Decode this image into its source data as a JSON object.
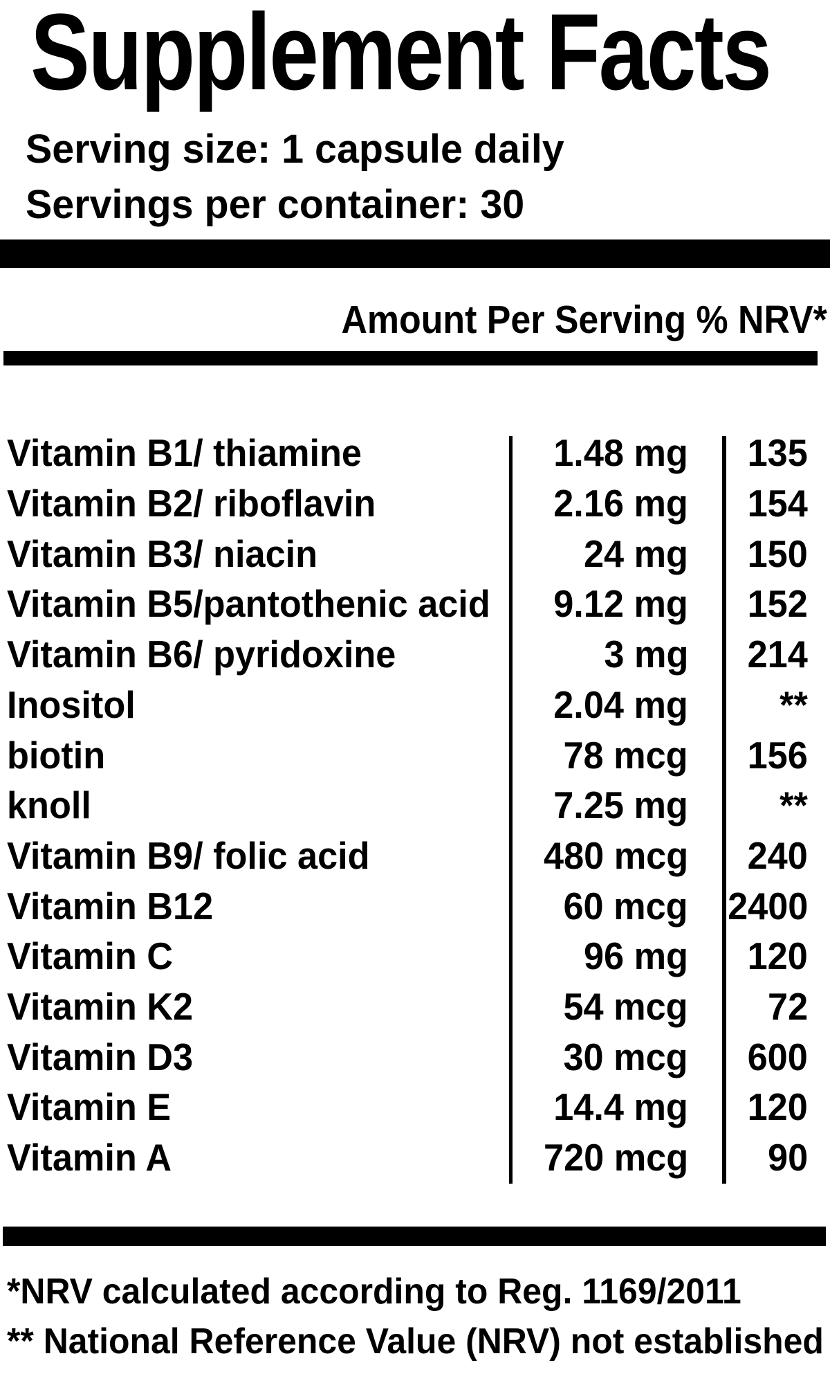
{
  "label": {
    "title": "Supplement Facts",
    "serving": {
      "size": "Serving size: 1 capsule daily",
      "per_container": "Servings per container: 30"
    },
    "table": {
      "header": "Amount Per Serving % NRV*",
      "rows": [
        {
          "name": "Vitamin B1/ thiamine",
          "amount": "1.48 mg",
          "nrv": "135"
        },
        {
          "name": "Vitamin B2/ riboflavin",
          "amount": "2.16 mg",
          "nrv": "154"
        },
        {
          "name": "Vitamin B3/ niacin",
          "amount": "24 mg",
          "nrv": "150"
        },
        {
          "name": "Vitamin B5/pantothenic acid",
          "amount": "9.12 mg",
          "nrv": "152"
        },
        {
          "name": "Vitamin B6/ pyridoxine",
          "amount": "3 mg",
          "nrv": "214"
        },
        {
          "name": "Inositol",
          "amount": "2.04 mg",
          "nrv": "**"
        },
        {
          "name": "biotin",
          "amount": "78 mcg",
          "nrv": "156"
        },
        {
          "name": "knoll",
          "amount": "7.25 mg",
          "nrv": "**"
        },
        {
          "name": "Vitamin B9/ folic acid",
          "amount": "480 mcg",
          "nrv": "240"
        },
        {
          "name": "Vitamin B12",
          "amount": "60 mcg",
          "nrv": "2400"
        },
        {
          "name": "Vitamin C",
          "amount": "96 mg",
          "nrv": "120"
        },
        {
          "name": "Vitamin K2",
          "amount": "54 mcg",
          "nrv": "72"
        },
        {
          "name": "Vitamin D3",
          "amount": "30 mcg",
          "nrv": "600"
        },
        {
          "name": "Vitamin E",
          "amount": "14.4 mg",
          "nrv": "120"
        },
        {
          "name": "Vitamin A",
          "amount": "720 mcg",
          "nrv": "90"
        }
      ]
    },
    "footnotes": {
      "nrv_calc": "*NRV calculated according to Reg. 1169/2011",
      "nrv_not_established": "** National Reference Value (NRV) not established"
    }
  }
}
